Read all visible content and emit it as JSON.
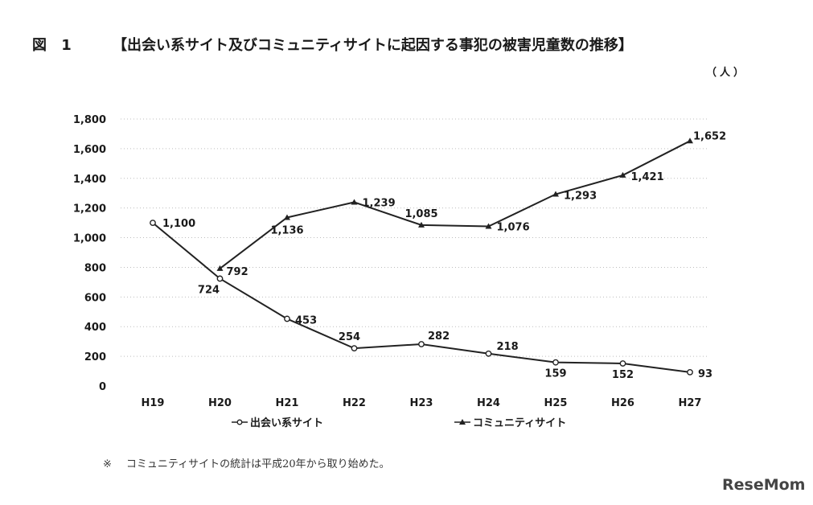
{
  "figure_label": "図 1",
  "title": "【出会い系サイト及びコミュニティサイトに起因する事犯の被害児童数の推移】",
  "unit": "（人）",
  "note_mark": "※",
  "note": "コミュニティサイトの統計は平成20年から取り始めた。",
  "logo": "ReseMom",
  "chart_data": {
    "type": "line",
    "title": "【出会い系サイト及びコミュニティサイトに起因する事犯の被害児童数の推移】",
    "xlabel": "",
    "ylabel": "（人）",
    "categories": [
      "H19",
      "H20",
      "H21",
      "H22",
      "H23",
      "H24",
      "H25",
      "H26",
      "H27"
    ],
    "ylim": [
      0,
      1800
    ],
    "yticks": [
      0,
      200,
      400,
      600,
      800,
      1000,
      1200,
      1400,
      1600,
      1800
    ],
    "ytick_labels": [
      "0",
      "200",
      "400",
      "600",
      "800",
      "1,000",
      "1,200",
      "1,400",
      "1,600",
      "1,800"
    ],
    "grid": true,
    "legend_position": "bottom",
    "series": [
      {
        "name": "出会い系サイト",
        "marker": "circle",
        "color": "#222222",
        "values": [
          1100,
          724,
          453,
          254,
          282,
          218,
          159,
          152,
          93
        ],
        "labels": [
          "1,100",
          "724",
          "453",
          "254",
          "282",
          "218",
          "159",
          "152",
          "93"
        ]
      },
      {
        "name": "コミュニティサイト",
        "marker": "triangle",
        "color": "#222222",
        "values": [
          null,
          792,
          1136,
          1239,
          1085,
          1076,
          1293,
          1421,
          1652
        ],
        "labels": [
          null,
          "792",
          "1,136",
          "1,239",
          "1,085",
          "1,076",
          "1,293",
          "1,421",
          "1,652"
        ]
      }
    ]
  }
}
